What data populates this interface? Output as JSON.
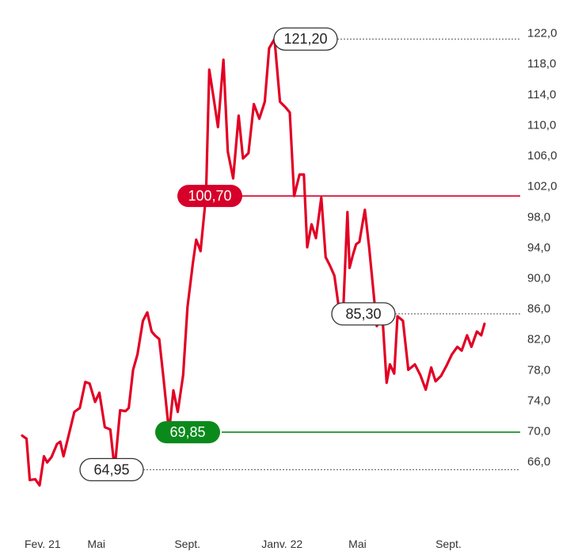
{
  "chart_data": {
    "type": "line",
    "title": "",
    "xlabel": "",
    "ylabel": "",
    "ylim": [
      62.4,
      123.4
    ],
    "y_ticks": [
      "122,0",
      "118,0",
      "114,0",
      "110,0",
      "106,0",
      "102,0",
      "98,0",
      "94,0",
      "90,0",
      "86,0",
      "82,0",
      "78,0",
      "74,0",
      "70,0",
      "66,0"
    ],
    "x_ticks": [
      {
        "label": "Fev. 21",
        "t": 0.0
      },
      {
        "label": "Mai",
        "t": 3.0
      },
      {
        "label": "Sept.",
        "t": 7.0
      },
      {
        "label": "Janv. 22",
        "t": 11.0
      },
      {
        "label": "Mai",
        "t": 15.0
      },
      {
        "label": "Sept.",
        "t": 19.0
      }
    ],
    "grid": false,
    "colors": {
      "line": "#e20024",
      "resistance": "#d6002a",
      "support": "#0b8a1c",
      "dotted": "#555555",
      "pill_border": "#333333"
    },
    "series": [
      {
        "x": [
          0.0,
          0.2,
          0.35,
          0.6,
          0.8,
          1.0,
          1.15,
          1.35,
          1.6,
          1.75,
          1.9,
          2.1,
          2.4,
          2.65,
          2.9,
          3.1,
          3.35,
          3.55,
          3.8,
          4.05,
          4.25,
          4.5,
          4.75,
          4.9,
          5.1,
          5.3,
          5.55,
          5.75,
          5.95,
          6.1,
          6.3,
          6.5,
          6.75,
          6.95,
          7.15,
          7.4,
          7.6,
          7.85,
          8.0,
          8.2,
          8.45,
          8.6,
          8.8,
          9.0,
          9.25,
          9.45,
          9.7,
          9.95,
          10.15,
          10.4,
          10.65,
          10.9,
          11.15,
          11.35,
          11.6,
          11.85,
          12.1,
          12.3,
          12.5,
          12.75,
          12.95,
          13.1,
          13.3,
          13.5,
          13.75,
          13.95,
          14.15,
          14.35,
          14.55,
          14.75,
          14.95,
          15.05,
          15.2,
          15.35,
          15.5,
          15.75,
          15.95,
          16.3,
          16.55,
          16.75,
          16.9,
          17.1,
          17.25,
          17.5,
          17.75,
          18.05,
          18.3,
          18.55,
          18.8,
          19.0,
          19.25,
          19.5,
          19.75,
          20.0,
          20.2,
          20.45,
          20.65,
          20.9,
          21.1,
          21.25
        ],
        "y": [
          69.4,
          69.0,
          63.6,
          63.7,
          62.9,
          66.7,
          65.9,
          66.6,
          68.3,
          68.6,
          66.7,
          69.0,
          72.5,
          73.0,
          76.4,
          76.2,
          73.8,
          75.0,
          70.5,
          70.2,
          65.0,
          72.7,
          72.6,
          73.0,
          78.0,
          80.0,
          84.4,
          85.5,
          83.0,
          82.5,
          82.0,
          76.8,
          69.85,
          75.3,
          72.5,
          77.3,
          86.2,
          92.0,
          95.0,
          93.5,
          100.8,
          117.2,
          113.5,
          109.7,
          118.5,
          106.5,
          103.0,
          111.2,
          105.6,
          106.3,
          112.7,
          110.8,
          113.0,
          120.0,
          121.2,
          113.0,
          112.3,
          111.6,
          100.7,
          103.5,
          103.5,
          94.0,
          97.0,
          95.2,
          100.5,
          92.7,
          91.6,
          90.3,
          86.2,
          85.3,
          98.6,
          91.3,
          93.0,
          94.4,
          94.7,
          98.9,
          93.9,
          83.7,
          85.3,
          76.3,
          78.7,
          77.5,
          85.0,
          84.4,
          78.0,
          78.7,
          77.3,
          75.4,
          78.3,
          76.5,
          77.2,
          78.5,
          80.0,
          81.0,
          80.5,
          82.5,
          81.0,
          83.0,
          82.5,
          84.0
        ]
      }
    ],
    "reference_lines": [
      {
        "kind": "resistance",
        "label": "100,70",
        "value": 100.7
      },
      {
        "kind": "support",
        "label": "69,85",
        "value": 69.85
      }
    ],
    "annotations": [
      {
        "label": "121,20",
        "value": 121.2
      },
      {
        "label": "85,30",
        "value": 85.3
      },
      {
        "label": "64,95",
        "value": 64.95
      }
    ]
  }
}
